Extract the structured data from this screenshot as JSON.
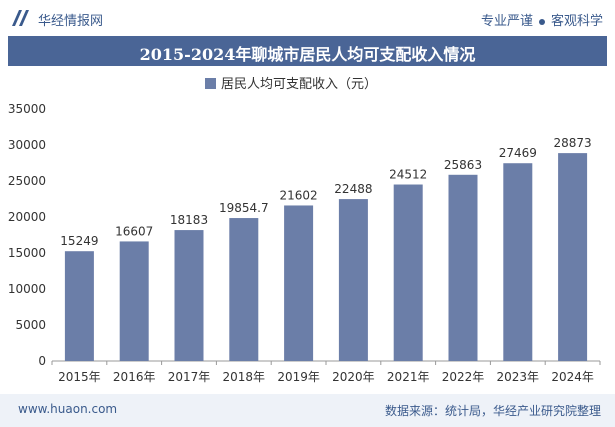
{
  "header": {
    "brand": "华经情报网",
    "tagline_left": "专业严谨",
    "tagline_right": "客观科学"
  },
  "colors": {
    "bar": "#6b7ea8",
    "title_bg": "#4a6596",
    "accent": "#3a5a8c"
  },
  "chart_data": {
    "type": "bar",
    "title": "2015-2024年聊城市居民人均可支配收入情况",
    "legend": "居民人均可支配收入（元）",
    "categories": [
      "2015年",
      "2016年",
      "2017年",
      "2018年",
      "2019年",
      "2020年",
      "2021年",
      "2022年",
      "2023年",
      "2024年"
    ],
    "values": [
      15249,
      16607,
      18183,
      19854.7,
      21602,
      22488,
      24512,
      25863,
      27469,
      28873
    ],
    "value_labels": [
      "15249",
      "16607",
      "18183",
      "19854.7",
      "21602",
      "22488",
      "24512",
      "25863",
      "27469",
      "28873"
    ],
    "yticks": [
      0,
      5000,
      10000,
      15000,
      20000,
      25000,
      30000,
      35000
    ],
    "ylim": [
      0,
      35000
    ],
    "xlabel": "",
    "ylabel": ""
  },
  "footer": {
    "website": "www.huaon.com",
    "source": "数据来源：统计局，华经产业研究院整理"
  }
}
